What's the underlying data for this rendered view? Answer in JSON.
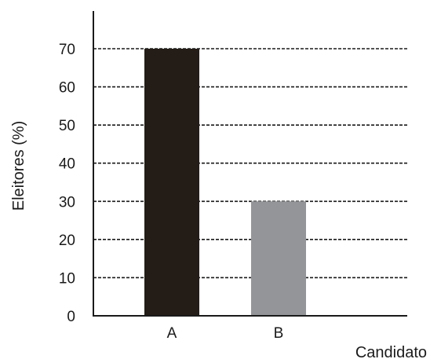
{
  "chart_data": {
    "type": "bar",
    "categories": [
      "A",
      "B"
    ],
    "values": [
      70,
      30
    ],
    "colors": [
      "#231c17",
      "#939598"
    ],
    "xlabel": "Candidato",
    "ylabel": "Eleitores (%)",
    "ylim": [
      0,
      70
    ],
    "yticks": [
      0,
      10,
      20,
      30,
      40,
      50,
      60,
      70
    ],
    "grid": "horizontal dashed",
    "legend": "none"
  }
}
